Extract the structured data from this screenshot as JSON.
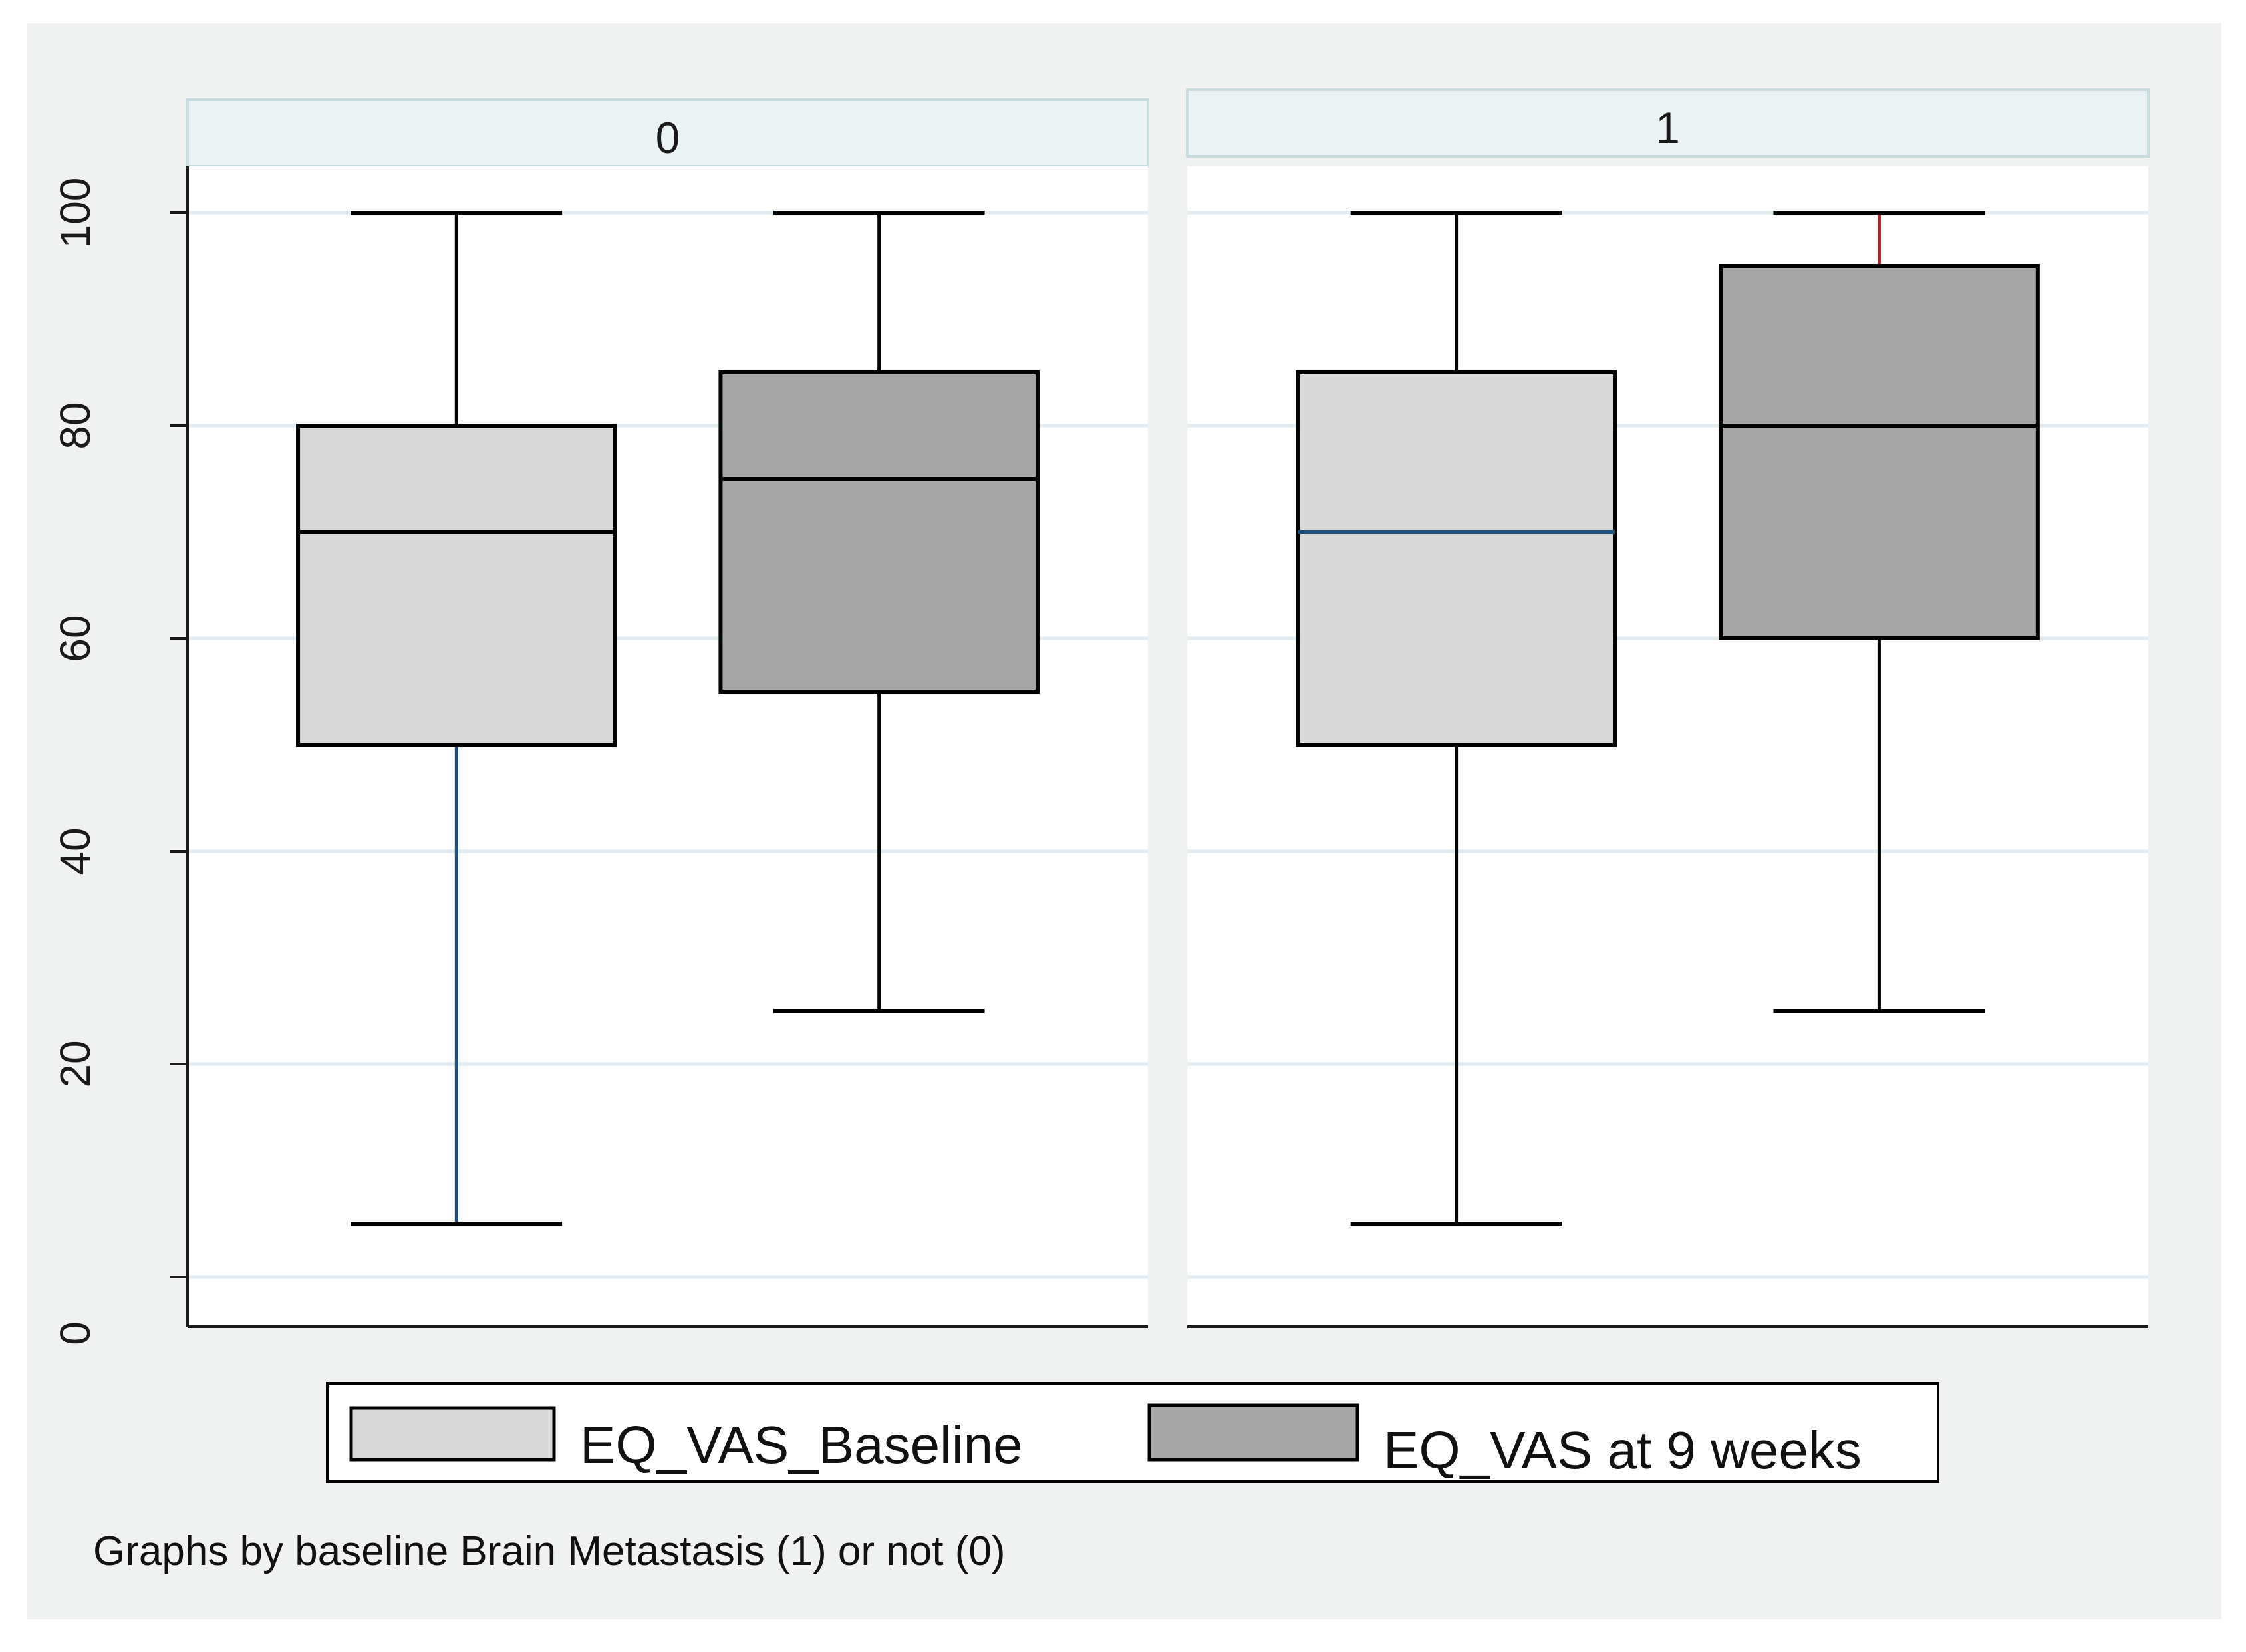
{
  "chart_data": {
    "type": "box",
    "ylim": [
      0,
      105
    ],
    "yticks": [
      0,
      20,
      40,
      60,
      80,
      100
    ],
    "ytick_labels": [
      "0",
      "20",
      "40",
      "60",
      "80",
      "100"
    ],
    "grid": true,
    "legend_position": "bottom",
    "note": "Graphs by baseline Brain Metastasis (1) or not (0)",
    "colors": {
      "background": "#f0f1f1",
      "panel": "#ffffff",
      "strip": "#eaf2f3",
      "strip_border": "#c9dde0",
      "grid": "#e0ecef",
      "axis": "#1a1a1a",
      "box_outline": "#000000"
    },
    "series": [
      {
        "name": "EQ_VAS_Baseline",
        "color": "#d9d9d9"
      },
      {
        "name": "EQ_VAS at 9 weeks",
        "color": "#a6a6a6"
      }
    ],
    "panels": [
      {
        "label": "0",
        "boxes": [
          {
            "series": "EQ_VAS_Baseline",
            "min": 5,
            "q1": 50,
            "median": 70,
            "q3": 80,
            "max": 100,
            "lower_whisker_color": "#1f4e79"
          },
          {
            "series": "EQ_VAS at 9 weeks",
            "min": 25,
            "q1": 55,
            "median": 75,
            "q3": 85,
            "max": 100
          }
        ]
      },
      {
        "label": "1",
        "boxes": [
          {
            "series": "EQ_VAS_Baseline",
            "min": 5,
            "q1": 50,
            "median": 70,
            "q3": 85,
            "max": 100,
            "median_color": "#1f4e79"
          },
          {
            "series": "EQ_VAS at 9 weeks",
            "min": 25,
            "q1": 60,
            "median": 80,
            "q3": 95,
            "max": 100,
            "upper_whisker_color": "#b22222"
          }
        ]
      }
    ]
  }
}
